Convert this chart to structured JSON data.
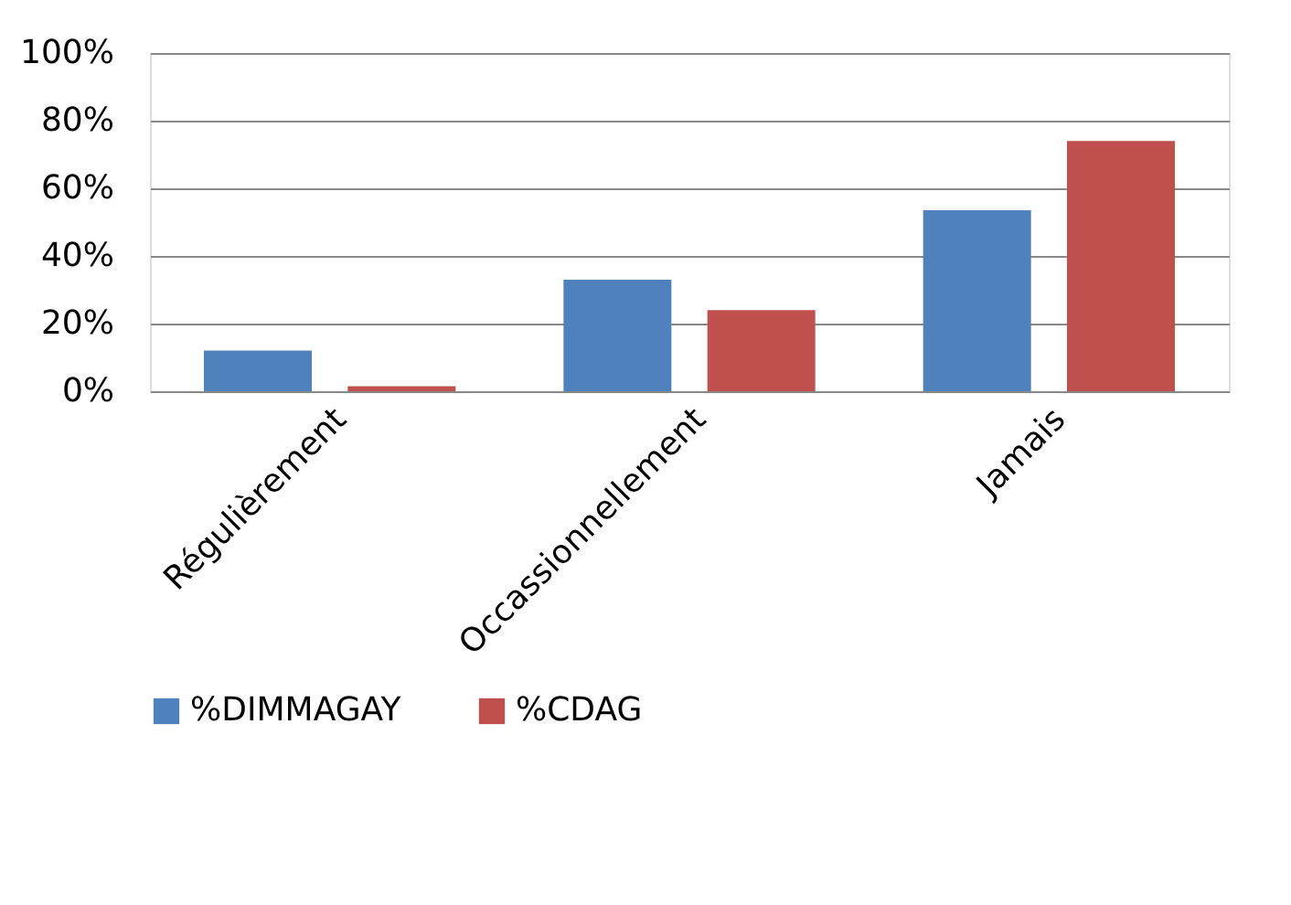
{
  "chart_data": {
    "type": "bar",
    "categories": [
      "Régulièrement",
      "Occassionnellement",
      "Jamais"
    ],
    "series": [
      {
        "name": "%DIMMAGAY",
        "color": "#4f81bd",
        "values": [
          12,
          33,
          53.5
        ]
      },
      {
        "name": "%CDAG",
        "color": "#c0504d",
        "values": [
          1.5,
          24,
          74
        ]
      }
    ],
    "ylim": [
      0,
      100
    ],
    "yticks": [
      {
        "value": 0,
        "label": "0%"
      },
      {
        "value": 20,
        "label": "20%"
      },
      {
        "value": 40,
        "label": "40%"
      },
      {
        "value": 60,
        "label": "60%"
      },
      {
        "value": 80,
        "label": "80%"
      },
      {
        "value": 100,
        "label": "100%"
      }
    ],
    "grid": "y",
    "legend": "bottom"
  }
}
